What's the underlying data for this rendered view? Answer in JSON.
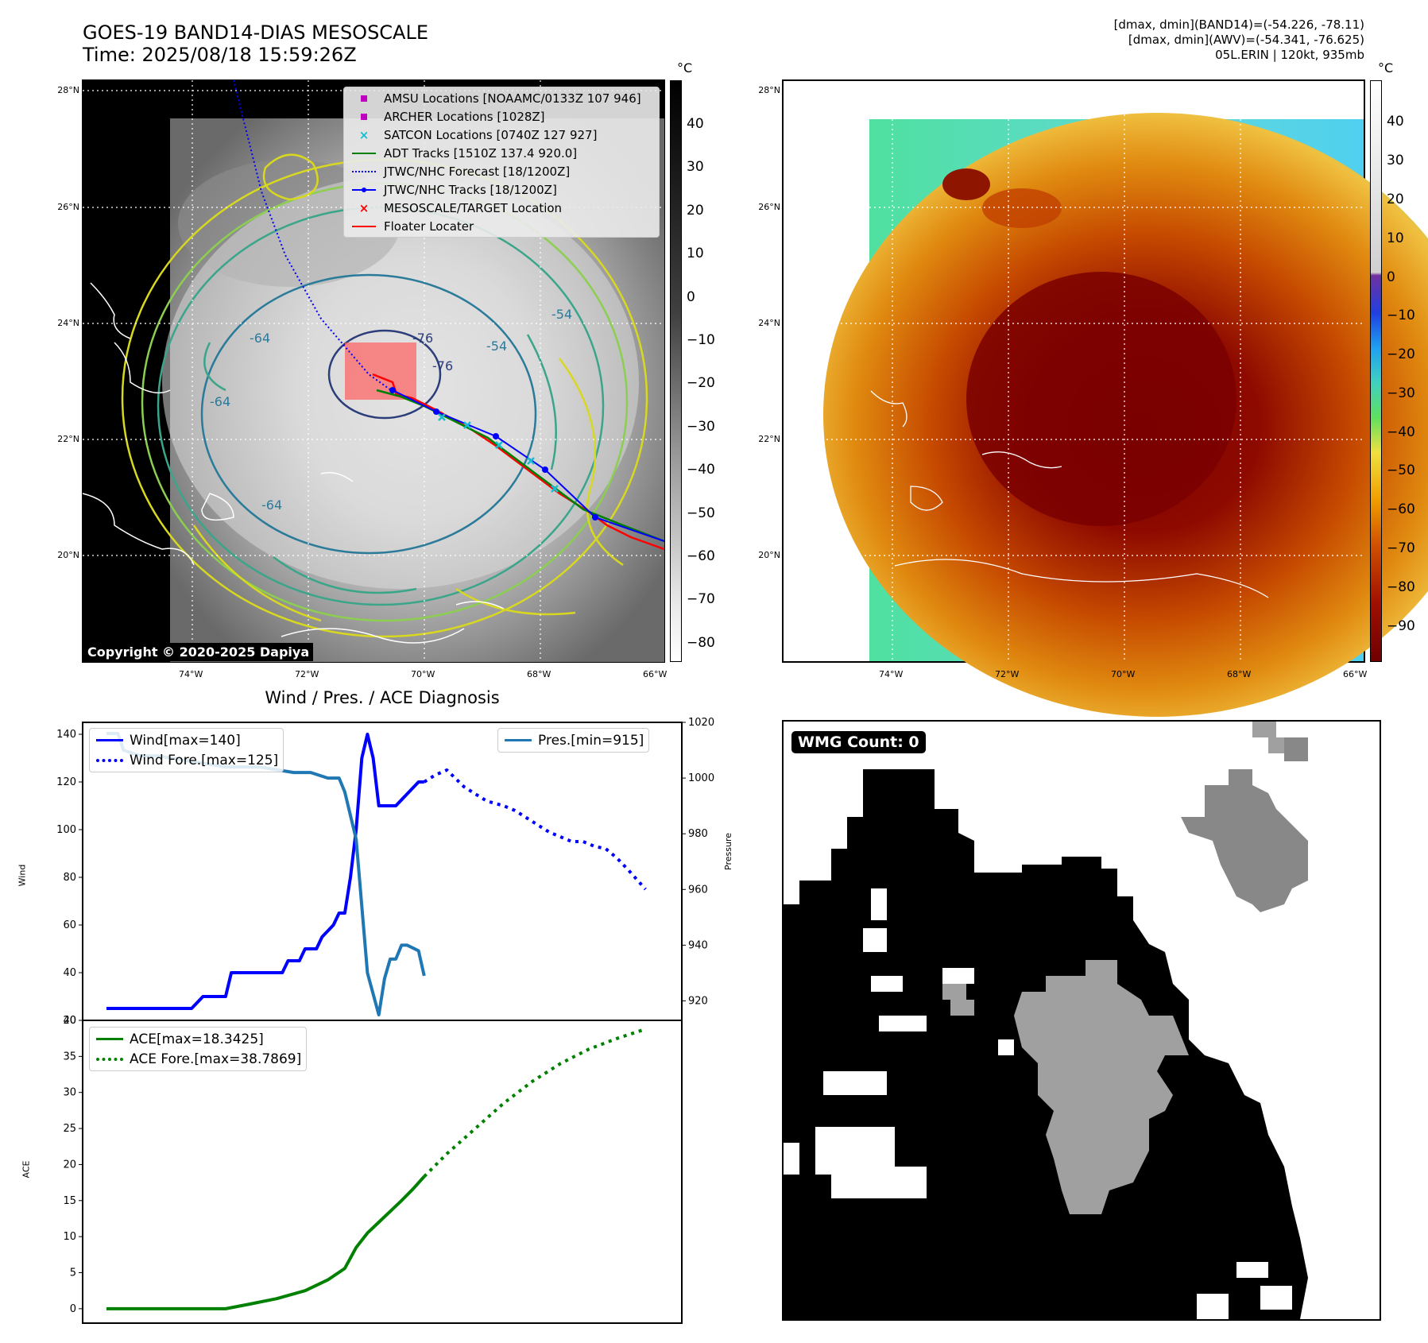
{
  "header": {
    "title_line1": "GOES-19 BAND14-DIAS MESOSCALE",
    "title_line2": "Time: 2025/08/18 15:59:26Z",
    "info_line1": "[dmax, dmin](BAND14)=(-54.226, -78.11)",
    "info_line2": "[dmax, dmin](AWV)=(-54.341, -76.625)",
    "info_line3": "05L.ERIN | 120kt, 935mb"
  },
  "map_axes": {
    "lat_labels": [
      "28°N",
      "26°N",
      "24°N",
      "22°N",
      "20°N"
    ],
    "lon_labels": [
      "74°W",
      "72°W",
      "70°W",
      "68°W",
      "66°W"
    ]
  },
  "left_map": {
    "colorbar_unit": "°C",
    "colorbar_ticks": [
      "40",
      "30",
      "20",
      "10",
      "0",
      "−10",
      "−20",
      "−30",
      "−40",
      "−50",
      "−60",
      "−70",
      "−80"
    ],
    "copyright": "Copyright © 2020-2025 Dapiya",
    "contour_labels": [
      "-64",
      "-64",
      "-64",
      "-54",
      "-54",
      "-76",
      "-76"
    ],
    "legend": [
      {
        "label": "AMSU Locations [NOAAMC/0133Z 107 946]",
        "symbol": "square",
        "color": "#bf00bf"
      },
      {
        "label": "ARCHER Locations [1028Z]",
        "symbol": "square",
        "color": "#bf00bf"
      },
      {
        "label": "SATCON Locations [0740Z 127 927]",
        "symbol": "x",
        "color": "#17becf"
      },
      {
        "label": "ADT Tracks [1510Z 137.4 920.0]",
        "symbol": "line",
        "color": "#008000"
      },
      {
        "label": "JTWC/NHC Forecast [18/1200Z]",
        "symbol": "dotted",
        "color": "#0000ff"
      },
      {
        "label": "JTWC/NHC Tracks [18/1200Z]",
        "symbol": "line-dot",
        "color": "#0000ff"
      },
      {
        "label": "MESOSCALE/TARGET Location",
        "symbol": "x",
        "color": "#ff0000"
      },
      {
        "label": "Floater Locater",
        "symbol": "line",
        "color": "#ff0000"
      }
    ]
  },
  "right_map": {
    "colorbar_unit": "°C",
    "colorbar_ticks": [
      "40",
      "30",
      "20",
      "10",
      "0",
      "−10",
      "−20",
      "−30",
      "−40",
      "−50",
      "−60",
      "−70",
      "−80",
      "−90"
    ]
  },
  "diagnosis": {
    "title": "Wind / Pres. / ACE Diagnosis",
    "wind_ylabel": "Wind",
    "pres_ylabel": "Pressure",
    "ace_ylabel": "ACE",
    "wmg_label": "WMG Count: 0"
  },
  "colors": {
    "wind": "#0000ff",
    "pressure": "#1f77b4",
    "ace": "#008000",
    "wmg_black": "#000000",
    "wmg_gray": "#a0a0a0",
    "wmg_darkgray": "#888888"
  },
  "chart_data": [
    {
      "type": "line",
      "title": "Wind / Pres. / ACE Diagnosis",
      "ylabel": "Wind",
      "ylim": [
        20,
        145
      ],
      "yticks": [
        20,
        40,
        60,
        80,
        100,
        120,
        140
      ],
      "y2label": "Pressure",
      "y2lim": [
        913,
        1020
      ],
      "y2ticks": [
        920,
        940,
        960,
        980,
        1000,
        1020
      ],
      "xlim": [
        0,
        100
      ],
      "series": [
        {
          "name": "Wind[max=140]",
          "axis": "left",
          "style": "solid",
          "x": [
            0,
            15,
            17,
            21,
            22,
            24,
            25,
            27,
            31,
            32,
            34,
            35,
            37,
            38,
            40,
            41,
            42,
            43,
            44,
            45,
            46,
            47,
            48,
            49,
            50,
            51,
            53,
            55,
            56
          ],
          "y": [
            25,
            25,
            30,
            30,
            40,
            40,
            40,
            40,
            40,
            45,
            45,
            50,
            50,
            55,
            60,
            65,
            65,
            80,
            100,
            130,
            140,
            130,
            110,
            110,
            110,
            110,
            115,
            120,
            120
          ]
        },
        {
          "name": "Wind Fore.[max=125]",
          "axis": "left",
          "style": "dotted",
          "x": [
            56,
            58,
            60,
            63,
            67,
            70,
            72,
            74,
            76,
            78,
            80,
            81,
            82,
            84,
            86,
            88,
            90,
            92,
            95
          ],
          "y": [
            120,
            123,
            125,
            118,
            112,
            110,
            108,
            105,
            102,
            99,
            97,
            96,
            95,
            95,
            93,
            92,
            88,
            83,
            75
          ]
        },
        {
          "name": "Pres.[min=915]",
          "axis": "right",
          "style": "solid",
          "x": [
            0,
            2,
            3,
            6,
            9,
            12,
            15,
            18,
            21,
            24,
            27,
            30,
            33,
            36,
            39,
            41,
            42,
            44,
            46,
            48,
            49,
            50,
            51,
            52,
            53,
            54,
            55,
            56
          ],
          "y": [
            1016,
            1016,
            1010,
            1008,
            1008,
            1007,
            1006,
            1005,
            1004,
            1004,
            1004,
            1003,
            1002,
            1002,
            1000,
            1000,
            995,
            978,
            930,
            915,
            928,
            935,
            935,
            940,
            940,
            939,
            938,
            929
          ]
        }
      ]
    },
    {
      "type": "line",
      "ylabel": "ACE",
      "ylim": [
        -2,
        40
      ],
      "yticks": [
        0,
        5,
        10,
        15,
        20,
        25,
        30,
        35,
        40
      ],
      "xlim": [
        0,
        100
      ],
      "series": [
        {
          "name": "ACE[max=18.3425]",
          "style": "solid",
          "x": [
            0,
            21,
            25,
            30,
            35,
            39,
            42,
            44,
            46,
            48,
            50,
            52,
            54,
            56
          ],
          "y": [
            0,
            0,
            0.6,
            1.4,
            2.5,
            4,
            5.6,
            8.5,
            10.5,
            12,
            13.5,
            15,
            16.6,
            18.34
          ]
        },
        {
          "name": "ACE Fore.[max=38.7869]",
          "style": "dotted",
          "x": [
            56,
            60,
            65,
            70,
            75,
            80,
            85,
            90,
            95
          ],
          "y": [
            18.34,
            21.5,
            25,
            28.5,
            31.5,
            34,
            36,
            37.5,
            38.79
          ]
        }
      ]
    }
  ]
}
